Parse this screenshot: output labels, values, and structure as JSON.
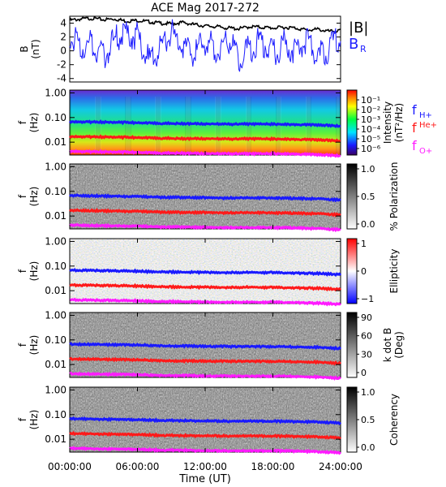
{
  "title": "ACE Mag 2017-272",
  "xlabel": "Time (UT)",
  "x_ticks": [
    "00:00:00",
    "06:00:00",
    "12:00:00",
    "18:00:00",
    "24:00:00"
  ],
  "colors": {
    "B": "#000000",
    "BR": "#1e1eff",
    "fH": "#1a1aff",
    "fHe": "#ff1a1a",
    "fO": "#ff1aff"
  },
  "chart_data": [
    {
      "type": "line",
      "panel": "field",
      "ylabel": "B (nT)",
      "ylabel_main": "B",
      "ylabel_unit": "(nT)",
      "xlim": [
        0,
        24
      ],
      "ylim": [
        -4.5,
        5
      ],
      "y_ticks": [
        "4",
        "2",
        "0",
        "-2",
        "-4"
      ],
      "legend": {
        "B": "|B|",
        "BR": "B",
        "BR_sub": "R"
      },
      "series": [
        {
          "name": "|B|",
          "x": [
            0,
            1,
            2,
            3,
            4,
            5,
            6,
            7,
            8,
            9,
            10,
            11,
            12,
            13,
            14,
            15,
            16,
            17,
            18,
            19,
            20,
            21,
            22,
            23,
            24
          ],
          "values": [
            4.4,
            4.6,
            4.7,
            4.5,
            4.6,
            4.3,
            4.4,
            4.2,
            4.0,
            3.9,
            4.1,
            3.8,
            3.6,
            3.5,
            3.3,
            3.2,
            3.5,
            3.4,
            3.3,
            3.4,
            3.3,
            3.0,
            3.1,
            2.8,
            2.9
          ]
        },
        {
          "name": "B_R",
          "x": [
            0,
            1,
            2,
            3,
            4,
            5,
            6,
            7,
            8,
            9,
            10,
            11,
            12,
            13,
            14,
            15,
            16,
            17,
            18,
            19,
            20,
            21,
            22,
            23,
            24
          ],
          "values": [
            2.0,
            0.5,
            1.0,
            -1.0,
            1.5,
            2.5,
            2.0,
            -1.5,
            0.5,
            2.5,
            1.0,
            -0.5,
            1.5,
            0.0,
            2.0,
            -1.0,
            0.5,
            1.5,
            -0.5,
            1.0,
            0.0,
            1.5,
            -1.0,
            0.5,
            2.0
          ]
        }
      ]
    },
    {
      "type": "heatmap",
      "panel": "intensity",
      "ylabel": "f (Hz)",
      "y_ticks": [
        "1.00",
        "0.10",
        "0.01"
      ],
      "colorbar_title": "Intensity",
      "colorbar_unit": "(nT²/Hz)",
      "colorbar_ticks": [
        "10⁻¹",
        "10⁻²",
        "10⁻³",
        "10⁻⁴",
        "10⁻⁵",
        "10⁻⁶"
      ],
      "legend": [
        {
          "text": "f",
          "sub": "H+"
        },
        {
          "text": "f",
          "sup": "He+"
        },
        {
          "text": "f",
          "sub": "O+"
        }
      ]
    },
    {
      "type": "heatmap",
      "panel": "polarization",
      "ylabel": "f (Hz)",
      "y_ticks": [
        "1.00",
        "0.10",
        "0.01"
      ],
      "colorbar_title": "% Polarization",
      "colorbar_ticks": [
        "1.0",
        "0.5",
        "0.0"
      ]
    },
    {
      "type": "heatmap",
      "panel": "ellipticity",
      "ylabel": "f (Hz)",
      "y_ticks": [
        "1.00",
        "0.10",
        "0.01"
      ],
      "colorbar_title": "Ellipticity",
      "colorbar_ticks": [
        "1",
        "0",
        "−1"
      ]
    },
    {
      "type": "heatmap",
      "panel": "kdotb",
      "ylabel": "f (Hz)",
      "y_ticks": [
        "1.00",
        "0.10",
        "0.01"
      ],
      "colorbar_title": "k dot B",
      "colorbar_unit": "(Deg)",
      "colorbar_ticks": [
        "90",
        "60",
        "30",
        "0"
      ]
    },
    {
      "type": "heatmap",
      "panel": "coherency",
      "ylabel": "f (Hz)",
      "y_ticks": [
        "1.00",
        "0.10",
        "0.01"
      ],
      "colorbar_title": "Coherency",
      "colorbar_ticks": [
        "1.0",
        "0.5",
        "0.0"
      ]
    }
  ],
  "gyrofrequency_lines": {
    "x": [
      0,
      2,
      4,
      6,
      8,
      10,
      12,
      14,
      16,
      18,
      20,
      22,
      24
    ],
    "H+": [
      0.068,
      0.066,
      0.064,
      0.062,
      0.058,
      0.057,
      0.055,
      0.054,
      0.055,
      0.054,
      0.052,
      0.05,
      0.045
    ],
    "He+": [
      0.017,
      0.0165,
      0.016,
      0.0155,
      0.0145,
      0.014,
      0.0138,
      0.0135,
      0.0138,
      0.0135,
      0.013,
      0.0125,
      0.0112
    ],
    "O+": [
      0.0043,
      0.0041,
      0.004,
      0.0039,
      0.0036,
      0.0036,
      0.0034,
      0.0034,
      0.0034,
      0.0034,
      0.0033,
      0.0031,
      0.0028
    ]
  }
}
